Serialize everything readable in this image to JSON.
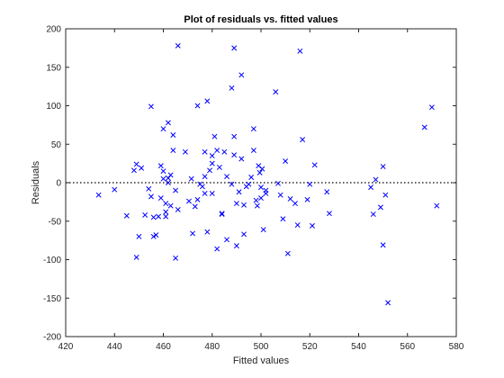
{
  "chart_data": {
    "type": "scatter",
    "title": "Plot of residuals vs. fitted values",
    "xlabel": "Fitted values",
    "ylabel": "Residuals",
    "xlim": [
      420,
      580
    ],
    "ylim": [
      -200,
      200
    ],
    "xticks": [
      420,
      440,
      460,
      480,
      500,
      520,
      540,
      560,
      580
    ],
    "yticks": [
      -200,
      -150,
      -100,
      -50,
      0,
      50,
      100,
      150,
      200
    ],
    "grid": false,
    "legend": "none",
    "marker": "x",
    "marker_color": "#0000ff",
    "reference_line": {
      "y": 0,
      "style": "dotted",
      "color": "#000000"
    },
    "series": [
      {
        "x": [
          433.5,
          440,
          445,
          448,
          449,
          449,
          450,
          451,
          452.5,
          454,
          455,
          455,
          456,
          457,
          456,
          458,
          459,
          459,
          460,
          460,
          460,
          461,
          461,
          461,
          462,
          462,
          462,
          463,
          463,
          464,
          464,
          465,
          466,
          466,
          469,
          470.5,
          471.5,
          472,
          473,
          474,
          474,
          475,
          476,
          477,
          477,
          477,
          478,
          478,
          479,
          480,
          480,
          480,
          481,
          482,
          482,
          483,
          484,
          484,
          485,
          486,
          486,
          488,
          488,
          489,
          489,
          489,
          490,
          490,
          491,
          492,
          492,
          493,
          493,
          494,
          495,
          496,
          497,
          497,
          498,
          498.5,
          499,
          499.5,
          500,
          500,
          500.5,
          501,
          502,
          502,
          506,
          507,
          508,
          509,
          510,
          511,
          512,
          514,
          515,
          516,
          517,
          519,
          520,
          521,
          522,
          527,
          528,
          545,
          546,
          547,
          549,
          550,
          550,
          551,
          552,
          567,
          570,
          572,
          465
        ],
        "y": [
          -16,
          -9,
          -43,
          16,
          24,
          -97,
          -70,
          19,
          -42,
          -8,
          -18,
          99,
          -45,
          -68,
          -70,
          -44,
          22,
          -20,
          5,
          15,
          70,
          -27,
          -38,
          -44,
          78,
          0,
          6,
          -30,
          10,
          62,
          42,
          -98,
          178,
          -35,
          40,
          -24,
          5,
          -66,
          -31,
          100,
          -22,
          -2,
          -5,
          -14,
          8,
          40,
          -64,
          106,
          16,
          25,
          35,
          -14,
          60,
          42,
          -86,
          20,
          -40,
          -41,
          40,
          -74,
          8,
          123,
          -2,
          175,
          36,
          60,
          -82,
          -27,
          -12,
          140,
          31,
          -67,
          -29,
          -5,
          -2,
          7,
          42,
          70,
          -23,
          -30,
          22,
          13,
          -20,
          -6,
          18,
          -61,
          -10,
          -14,
          118,
          -1,
          -16,
          -47,
          28,
          -92,
          -21,
          -27,
          -55,
          171,
          56,
          -22,
          -2,
          -56,
          23,
          -12,
          -40,
          -6,
          -41,
          4,
          -32,
          -81,
          21,
          -16,
          -156,
          72,
          98,
          -30,
          -10
        ]
      }
    ]
  }
}
